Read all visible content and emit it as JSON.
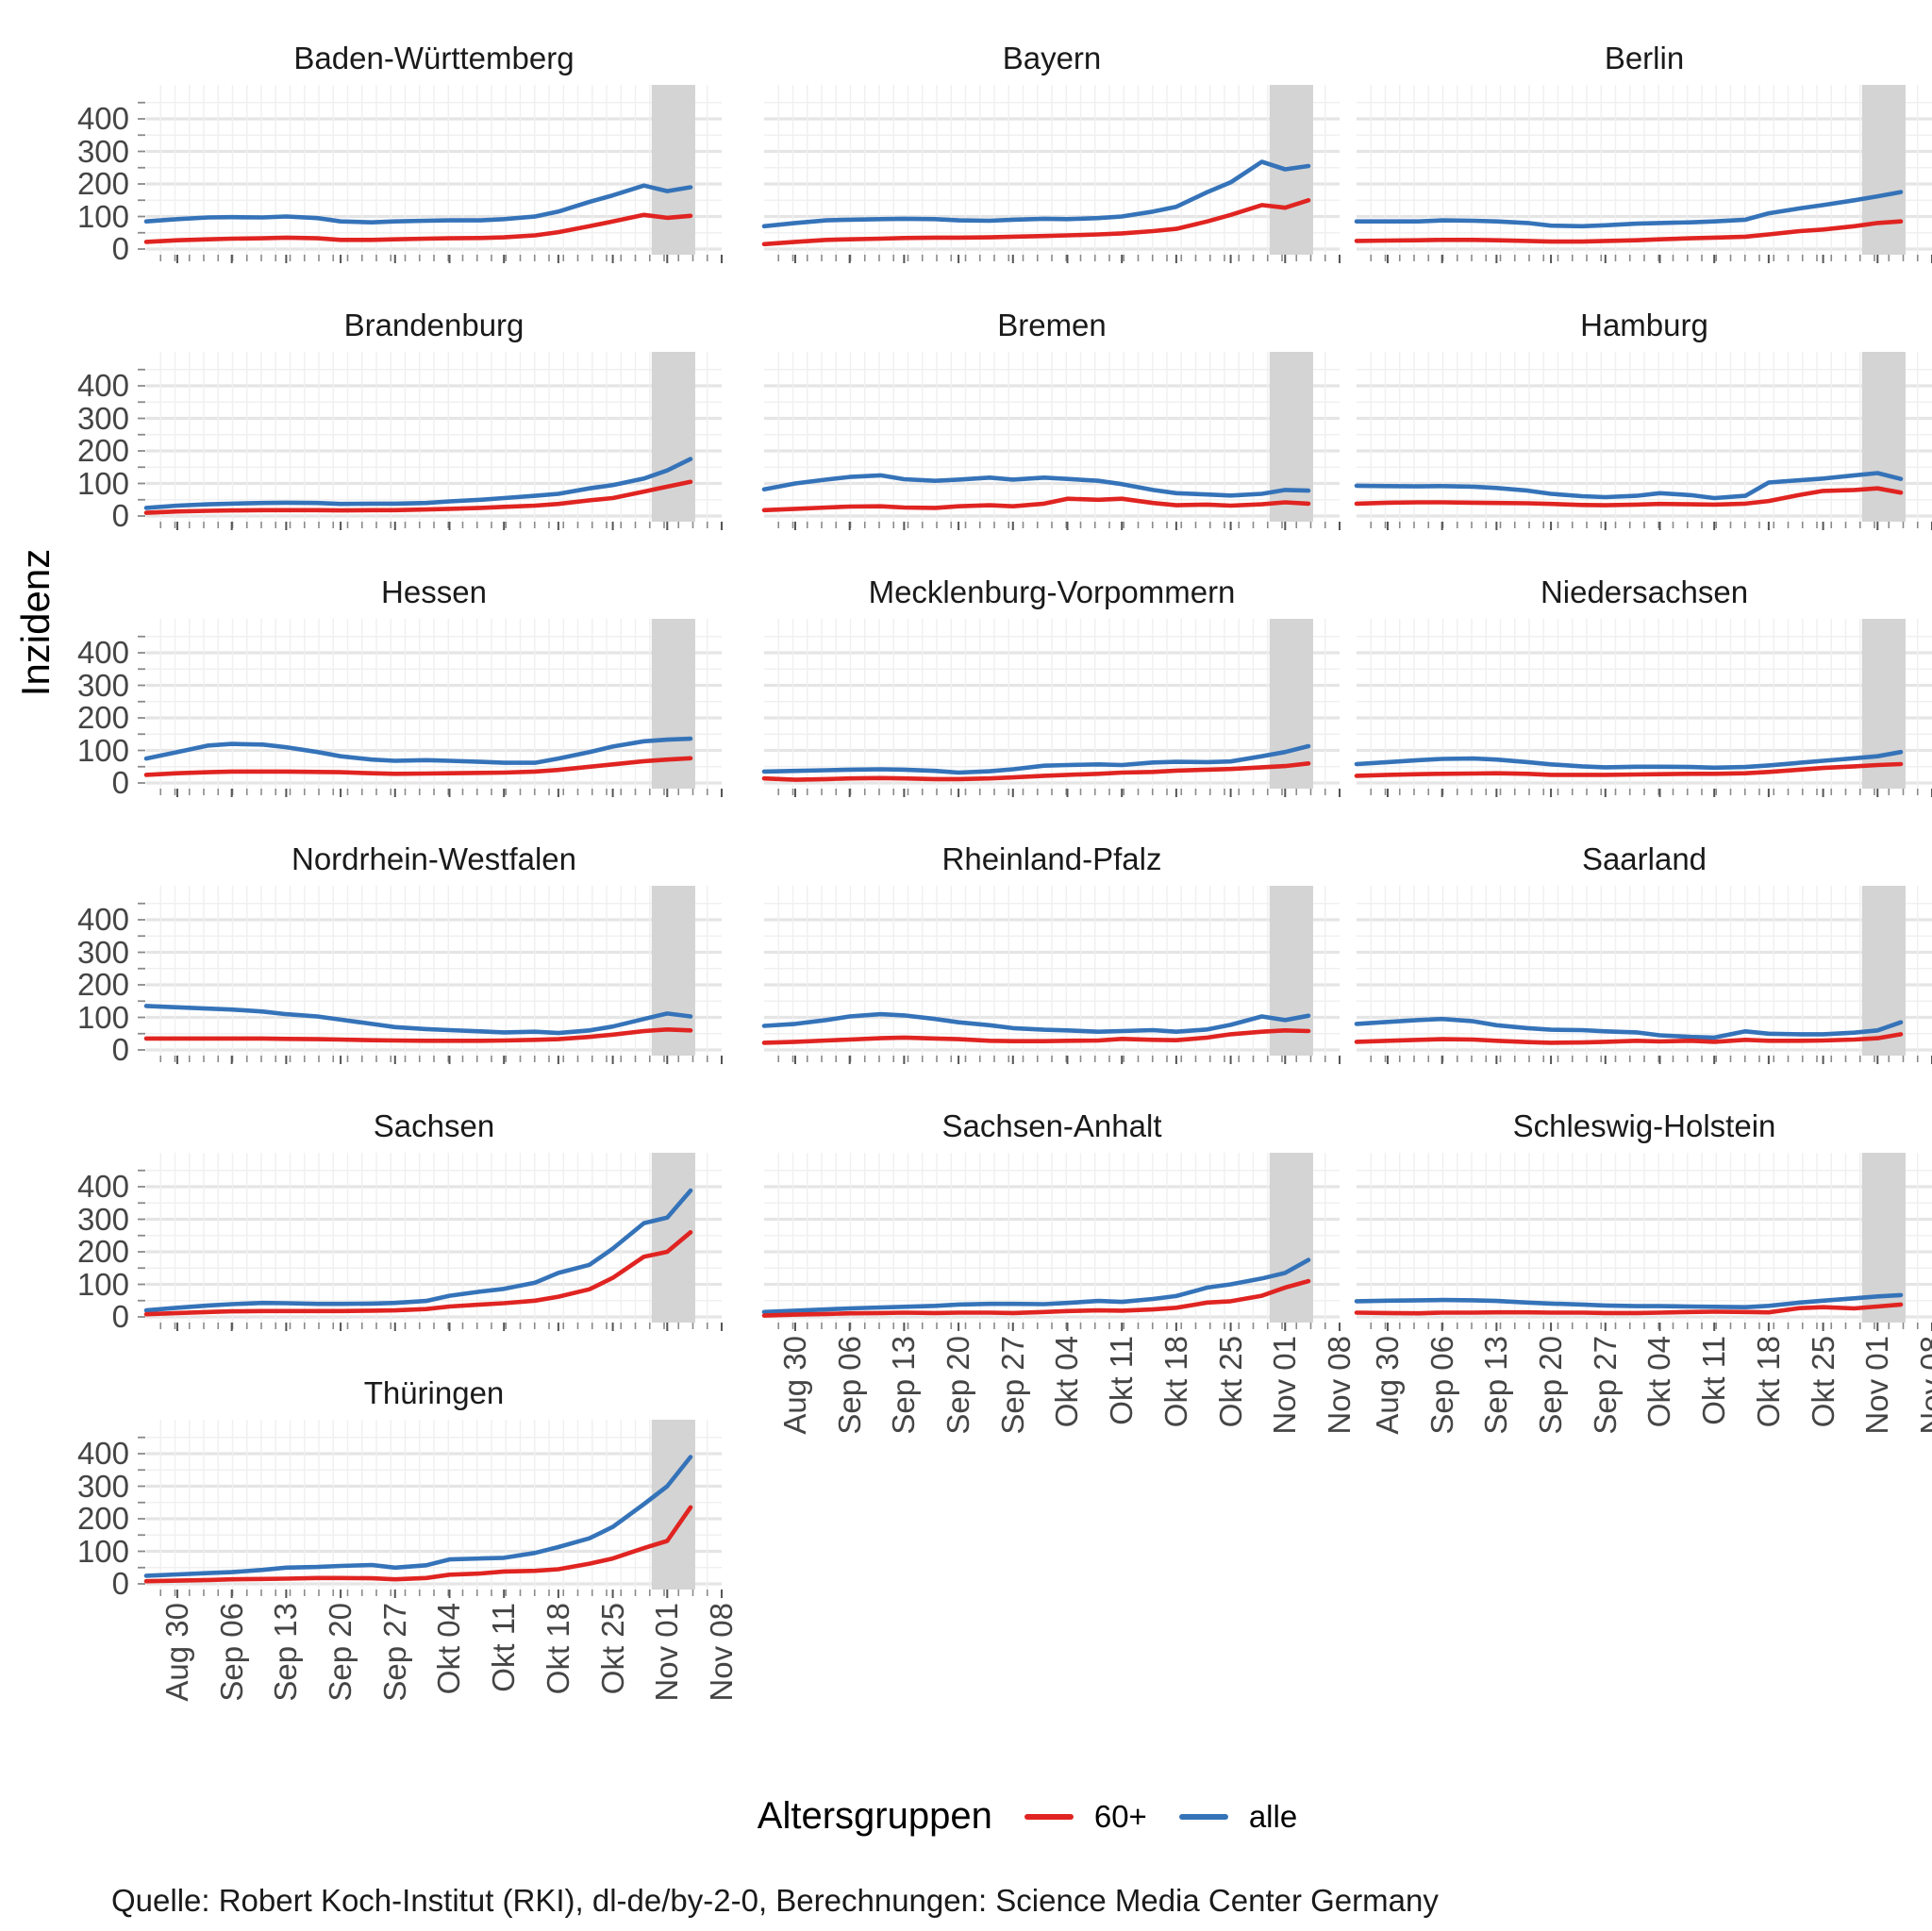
{
  "chart_data": {
    "type": "line",
    "ylabel": "Inzidenz",
    "source": "Quelle: Robert Koch-Institut (RKI), dl-de/by-2-0, Berechnungen: Science Media Center Germany",
    "legend": {
      "title": "Altersgruppen",
      "series": [
        {
          "label": "60+",
          "color": "#e02421"
        },
        {
          "label": "alle",
          "color": "#3573b9"
        }
      ]
    },
    "y_ticks": [
      0,
      100,
      200,
      300,
      400
    ],
    "ylim": [
      0,
      400
    ],
    "x_tick_labels": [
      "Aug 30",
      "Sep 06",
      "Sep 13",
      "Sep 20",
      "Sep 27",
      "Okt 04",
      "Okt 11",
      "Okt 18",
      "Okt 25",
      "Nov 01",
      "Nov 08"
    ],
    "x_tick_days": [
      4,
      11,
      18,
      25,
      32,
      39,
      46,
      53,
      60,
      67,
      74
    ],
    "x_axis_range_days": [
      0,
      74
    ],
    "x_days": [
      0,
      4,
      8,
      11,
      15,
      18,
      22,
      25,
      29,
      32,
      36,
      39,
      43,
      46,
      50,
      53,
      57,
      60,
      64,
      67,
      70
    ],
    "shaded_band_days": [
      65,
      70.6
    ],
    "band_color": "#d4d4d4",
    "grid_major_color": "#e5e5e5",
    "grid_minor_color": "#f0f0f0",
    "tick_color": "#8a8a8a",
    "facets": [
      {
        "name": "Baden-Württemberg",
        "alle": [
          85,
          92,
          97,
          98,
          97,
          100,
          95,
          85,
          82,
          85,
          87,
          88,
          88,
          92,
          100,
          115,
          145,
          165,
          195,
          178,
          190
        ],
        "p60": [
          22,
          27,
          30,
          32,
          33,
          35,
          33,
          28,
          28,
          30,
          32,
          33,
          34,
          36,
          42,
          52,
          70,
          85,
          105,
          96,
          102
        ]
      },
      {
        "name": "Bayern",
        "alle": [
          70,
          80,
          88,
          90,
          92,
          93,
          92,
          88,
          87,
          90,
          93,
          92,
          95,
          100,
          115,
          130,
          175,
          205,
          268,
          245,
          255
        ],
        "p60": [
          15,
          22,
          28,
          30,
          32,
          34,
          35,
          35,
          36,
          38,
          40,
          42,
          45,
          48,
          55,
          62,
          85,
          105,
          135,
          127,
          150
        ]
      },
      {
        "name": "Berlin",
        "alle": [
          85,
          85,
          85,
          88,
          87,
          85,
          80,
          72,
          70,
          73,
          78,
          80,
          82,
          85,
          90,
          110,
          125,
          135,
          150,
          162,
          175
        ],
        "p60": [
          25,
          26,
          27,
          28,
          28,
          27,
          25,
          23,
          23,
          25,
          27,
          30,
          33,
          35,
          38,
          45,
          55,
          60,
          70,
          80,
          85
        ]
      },
      {
        "name": "Brandenburg",
        "alle": [
          25,
          32,
          36,
          38,
          40,
          41,
          40,
          37,
          38,
          38,
          40,
          45,
          50,
          55,
          62,
          68,
          85,
          95,
          115,
          140,
          175
        ],
        "p60": [
          10,
          14,
          16,
          17,
          18,
          18,
          18,
          17,
          18,
          18,
          20,
          22,
          25,
          28,
          32,
          37,
          48,
          55,
          75,
          90,
          105
        ]
      },
      {
        "name": "Bremen",
        "alle": [
          82,
          100,
          112,
          120,
          125,
          113,
          108,
          112,
          118,
          112,
          118,
          114,
          108,
          98,
          80,
          70,
          66,
          63,
          68,
          80,
          78
        ],
        "p60": [
          18,
          22,
          26,
          29,
          30,
          26,
          25,
          30,
          33,
          30,
          38,
          53,
          50,
          53,
          40,
          33,
          35,
          32,
          36,
          42,
          38
        ]
      },
      {
        "name": "Hamburg",
        "alle": [
          93,
          92,
          91,
          92,
          90,
          86,
          78,
          68,
          61,
          58,
          62,
          70,
          64,
          55,
          62,
          103,
          110,
          115,
          125,
          132,
          114
        ],
        "p60": [
          38,
          41,
          42,
          42,
          41,
          40,
          39,
          37,
          34,
          33,
          35,
          37,
          36,
          35,
          38,
          46,
          65,
          77,
          80,
          85,
          72
        ]
      },
      {
        "name": "Hessen",
        "alle": [
          75,
          95,
          115,
          120,
          118,
          110,
          95,
          82,
          72,
          68,
          70,
          68,
          65,
          62,
          62,
          75,
          95,
          112,
          128,
          133,
          136
        ],
        "p60": [
          25,
          30,
          33,
          35,
          35,
          35,
          34,
          33,
          30,
          28,
          29,
          30,
          31,
          32,
          35,
          40,
          50,
          57,
          67,
          72,
          76
        ]
      },
      {
        "name": "Mecklenburg-Vorpommern",
        "alle": [
          35,
          37,
          39,
          41,
          42,
          41,
          37,
          32,
          36,
          42,
          53,
          55,
          57,
          55,
          63,
          65,
          64,
          66,
          82,
          95,
          113
        ],
        "p60": [
          14,
          10,
          12,
          14,
          15,
          14,
          12,
          12,
          14,
          17,
          22,
          25,
          28,
          32,
          34,
          38,
          41,
          43,
          48,
          52,
          60
        ]
      },
      {
        "name": "Niedersachsen",
        "alle": [
          58,
          64,
          70,
          74,
          75,
          72,
          64,
          57,
          51,
          48,
          50,
          50,
          49,
          47,
          49,
          54,
          62,
          68,
          76,
          82,
          95
        ],
        "p60": [
          22,
          25,
          27,
          28,
          29,
          30,
          28,
          25,
          25,
          25,
          26,
          27,
          28,
          28,
          30,
          34,
          41,
          46,
          51,
          55,
          58
        ]
      },
      {
        "name": "Nordrhein-Westfalen",
        "alle": [
          135,
          131,
          127,
          124,
          118,
          110,
          103,
          93,
          80,
          70,
          64,
          61,
          57,
          54,
          56,
          52,
          60,
          72,
          95,
          112,
          103
        ],
        "p60": [
          35,
          35,
          35,
          35,
          35,
          34,
          33,
          32,
          30,
          29,
          28,
          28,
          28,
          29,
          31,
          33,
          40,
          47,
          58,
          63,
          60
        ]
      },
      {
        "name": "Rheinland-Pfalz",
        "alle": [
          74,
          80,
          92,
          103,
          110,
          106,
          95,
          85,
          76,
          67,
          62,
          60,
          56,
          58,
          61,
          56,
          63,
          77,
          103,
          92,
          105
        ],
        "p60": [
          22,
          25,
          29,
          32,
          36,
          38,
          35,
          33,
          28,
          27,
          27,
          28,
          29,
          34,
          31,
          30,
          38,
          48,
          56,
          60,
          58
        ]
      },
      {
        "name": "Saarland",
        "alle": [
          80,
          86,
          92,
          95,
          88,
          76,
          67,
          62,
          61,
          57,
          54,
          45,
          40,
          38,
          57,
          50,
          48,
          48,
          53,
          60,
          85
        ],
        "p60": [
          25,
          28,
          31,
          33,
          32,
          28,
          24,
          22,
          23,
          25,
          28,
          26,
          28,
          25,
          31,
          28,
          28,
          29,
          32,
          36,
          48
        ]
      },
      {
        "name": "Sachsen",
        "alle": [
          20,
          28,
          35,
          39,
          43,
          42,
          40,
          40,
          41,
          43,
          49,
          65,
          78,
          86,
          105,
          135,
          160,
          210,
          288,
          305,
          388
        ],
        "p60": [
          8,
          12,
          15,
          17,
          18,
          18,
          18,
          18,
          19,
          20,
          24,
          32,
          38,
          42,
          50,
          62,
          85,
          120,
          185,
          200,
          260
        ]
      },
      {
        "name": "Sachsen-Anhalt",
        "alle": [
          15,
          19,
          23,
          26,
          29,
          31,
          34,
          38,
          40,
          40,
          39,
          43,
          49,
          46,
          55,
          64,
          90,
          100,
          118,
          135,
          175
        ],
        "p60": [
          4,
          7,
          9,
          11,
          12,
          13,
          12,
          13,
          13,
          12,
          15,
          18,
          20,
          19,
          23,
          28,
          44,
          48,
          65,
          90,
          110
        ]
      },
      {
        "name": "Schleswig-Holstein",
        "alle": [
          48,
          50,
          51,
          52,
          51,
          49,
          44,
          41,
          38,
          35,
          33,
          33,
          32,
          31,
          30,
          34,
          44,
          50,
          57,
          63,
          67
        ],
        "p60": [
          13,
          12,
          11,
          13,
          13,
          14,
          14,
          13,
          13,
          12,
          12,
          13,
          15,
          16,
          15,
          14,
          27,
          30,
          26,
          32,
          38
        ]
      },
      {
        "name": "Thüringen",
        "alle": [
          25,
          29,
          33,
          36,
          43,
          50,
          52,
          55,
          58,
          50,
          57,
          75,
          78,
          80,
          95,
          113,
          140,
          175,
          245,
          300,
          390
        ],
        "p60": [
          8,
          10,
          12,
          14,
          15,
          16,
          18,
          18,
          17,
          14,
          18,
          28,
          32,
          38,
          40,
          45,
          62,
          78,
          110,
          132,
          235
        ]
      }
    ]
  }
}
